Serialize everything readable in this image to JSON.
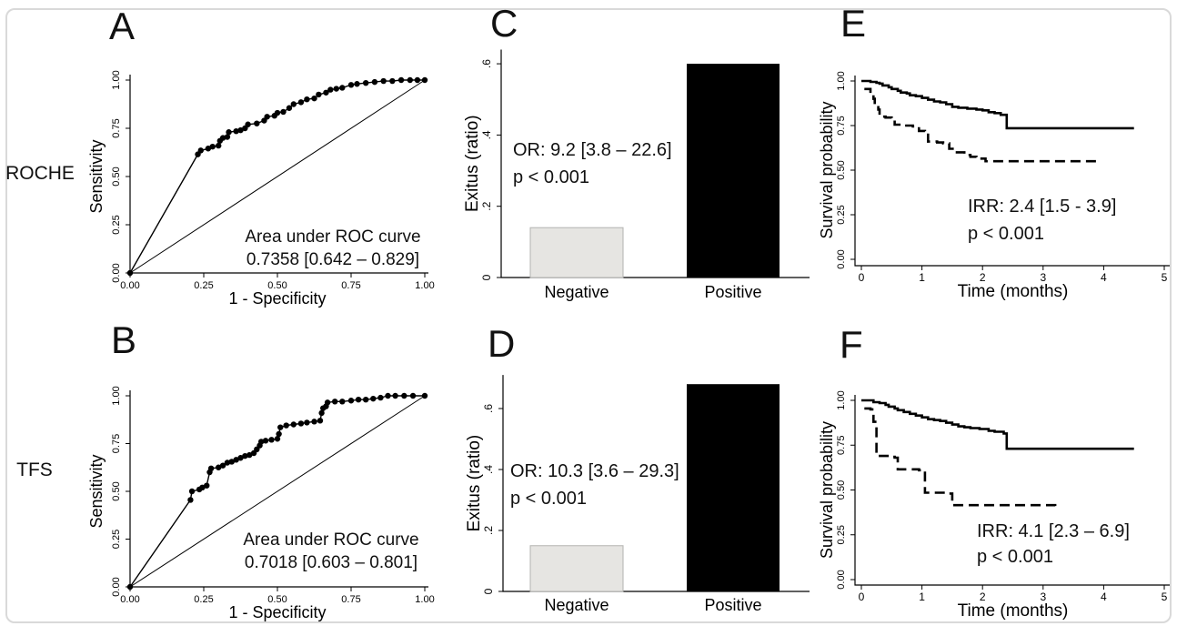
{
  "figure": {
    "row_labels": [
      "ROCHE",
      "TFS"
    ]
  },
  "chart_data": [
    {
      "id": "A",
      "panel_letter": "A",
      "row": "ROCHE",
      "type": "line",
      "subtype": "roc",
      "xlabel": "1 - Specificity",
      "ylabel": "Sensitivity",
      "xlim": [
        0,
        1
      ],
      "ylim": [
        0,
        1
      ],
      "xticks": [
        0,
        0.25,
        0.5,
        0.75,
        1
      ],
      "xtick_labels": [
        "0.00",
        "0.25",
        "0.50",
        "0.75",
        "1.00"
      ],
      "yticks": [
        0,
        0.25,
        0.5,
        0.75,
        1
      ],
      "ytick_labels": [
        "0.00",
        "0.25",
        "0.50",
        "0.75",
        "1.00"
      ],
      "diagonal_reference": true,
      "annotation_lines": [
        "Area under ROC curve",
        "0.7358 [0.642 – 0.829]"
      ],
      "points": [
        [
          0,
          0
        ],
        [
          0.23,
          0.615
        ],
        [
          0.24,
          0.635
        ],
        [
          0.265,
          0.645
        ],
        [
          0.28,
          0.655
        ],
        [
          0.3,
          0.66
        ],
        [
          0.305,
          0.685
        ],
        [
          0.315,
          0.7
        ],
        [
          0.33,
          0.705
        ],
        [
          0.335,
          0.73
        ],
        [
          0.36,
          0.735
        ],
        [
          0.375,
          0.74
        ],
        [
          0.39,
          0.75
        ],
        [
          0.4,
          0.77
        ],
        [
          0.43,
          0.775
        ],
        [
          0.455,
          0.79
        ],
        [
          0.465,
          0.81
        ],
        [
          0.49,
          0.815
        ],
        [
          0.5,
          0.83
        ],
        [
          0.52,
          0.835
        ],
        [
          0.54,
          0.855
        ],
        [
          0.555,
          0.875
        ],
        [
          0.58,
          0.885
        ],
        [
          0.6,
          0.9
        ],
        [
          0.625,
          0.905
        ],
        [
          0.64,
          0.925
        ],
        [
          0.665,
          0.935
        ],
        [
          0.68,
          0.95
        ],
        [
          0.7,
          0.955
        ],
        [
          0.72,
          0.96
        ],
        [
          0.75,
          0.975
        ],
        [
          0.77,
          0.98
        ],
        [
          0.8,
          0.985
        ],
        [
          0.83,
          0.99
        ],
        [
          0.86,
          0.995
        ],
        [
          0.89,
          0.995
        ],
        [
          0.92,
          1
        ],
        [
          0.95,
          1
        ],
        [
          0.975,
          1
        ],
        [
          1,
          1
        ]
      ]
    },
    {
      "id": "B",
      "panel_letter": "B",
      "row": "TFS",
      "type": "line",
      "subtype": "roc",
      "xlabel": "1 - Specificity",
      "ylabel": "Sensitivity",
      "xlim": [
        0,
        1
      ],
      "ylim": [
        0,
        1
      ],
      "xticks": [
        0,
        0.25,
        0.5,
        0.75,
        1
      ],
      "xtick_labels": [
        "0.00",
        "0.25",
        "0.50",
        "0.75",
        "1.00"
      ],
      "yticks": [
        0,
        0.25,
        0.5,
        0.75,
        1
      ],
      "ytick_labels": [
        "0.00",
        "0.25",
        "0.50",
        "0.75",
        "1.00"
      ],
      "diagonal_reference": true,
      "annotation_lines": [
        "Area under ROC curve",
        "0.7018 [0.603 – 0.801]"
      ],
      "points": [
        [
          0,
          0
        ],
        [
          0.205,
          0.455
        ],
        [
          0.21,
          0.5
        ],
        [
          0.235,
          0.51
        ],
        [
          0.245,
          0.52
        ],
        [
          0.26,
          0.53
        ],
        [
          0.27,
          0.6
        ],
        [
          0.275,
          0.62
        ],
        [
          0.3,
          0.625
        ],
        [
          0.315,
          0.635
        ],
        [
          0.33,
          0.65
        ],
        [
          0.345,
          0.655
        ],
        [
          0.36,
          0.665
        ],
        [
          0.375,
          0.675
        ],
        [
          0.39,
          0.685
        ],
        [
          0.405,
          0.69
        ],
        [
          0.42,
          0.7
        ],
        [
          0.43,
          0.72
        ],
        [
          0.44,
          0.74
        ],
        [
          0.445,
          0.76
        ],
        [
          0.46,
          0.765
        ],
        [
          0.48,
          0.77
        ],
        [
          0.5,
          0.775
        ],
        [
          0.505,
          0.8
        ],
        [
          0.51,
          0.835
        ],
        [
          0.53,
          0.845
        ],
        [
          0.555,
          0.85
        ],
        [
          0.58,
          0.855
        ],
        [
          0.6,
          0.86
        ],
        [
          0.625,
          0.865
        ],
        [
          0.645,
          0.87
        ],
        [
          0.65,
          0.91
        ],
        [
          0.655,
          0.935
        ],
        [
          0.665,
          0.945
        ],
        [
          0.67,
          0.965
        ],
        [
          0.695,
          0.97
        ],
        [
          0.72,
          0.97
        ],
        [
          0.75,
          0.975
        ],
        [
          0.775,
          0.98
        ],
        [
          0.8,
          0.98
        ],
        [
          0.825,
          0.985
        ],
        [
          0.85,
          0.99
        ],
        [
          0.875,
          1
        ],
        [
          0.9,
          1
        ],
        [
          0.93,
          1
        ],
        [
          0.96,
          1
        ],
        [
          1,
          1
        ]
      ]
    },
    {
      "id": "C",
      "panel_letter": "C",
      "row": "ROCHE",
      "type": "bar",
      "ylabel": "Exitus (ratio)",
      "categories": [
        "Negative",
        "Positive"
      ],
      "values": [
        0.14,
        0.6
      ],
      "bar_colors": [
        "#e6e5e2",
        "#000000"
      ],
      "yticks": [
        0,
        0.2,
        0.4,
        0.6
      ],
      "ytick_labels": [
        "0",
        ".2",
        ".4",
        ".6"
      ],
      "ylim": [
        0,
        0.64
      ],
      "annotation_lines": [
        "OR: 9.2 [3.8 – 22.6]",
        "p < 0.001"
      ]
    },
    {
      "id": "D",
      "panel_letter": "D",
      "row": "TFS",
      "type": "bar",
      "ylabel": "Exitus (ratio)",
      "categories": [
        "Negative",
        "Positive"
      ],
      "values": [
        0.15,
        0.68
      ],
      "bar_colors": [
        "#e6e5e2",
        "#000000"
      ],
      "yticks": [
        0,
        0.2,
        0.4,
        0.6
      ],
      "ytick_labels": [
        "0",
        ".2",
        ".4",
        ".6"
      ],
      "ylim": [
        0,
        0.71
      ],
      "annotation_lines": [
        "OR: 10.3 [3.6 – 29.3]",
        "p < 0.001"
      ]
    },
    {
      "id": "E",
      "panel_letter": "E",
      "row": "ROCHE",
      "type": "line",
      "subtype": "km",
      "xlabel": "Time (months)",
      "ylabel": "Survival probability",
      "xlim": [
        0,
        5
      ],
      "ylim": [
        0,
        1
      ],
      "xticks": [
        0,
        1,
        2,
        3,
        4,
        5
      ],
      "xtick_labels": [
        "0",
        "1",
        "2",
        "3",
        "4",
        "5"
      ],
      "yticks": [
        0,
        0.25,
        0.5,
        0.75,
        1
      ],
      "ytick_labels": [
        "0.00",
        "0.25",
        "0.50",
        "0.75",
        "1.00"
      ],
      "annotation_lines": [
        "IRR: 2.4 [1.5 - 3.9]",
        "p < 0.001"
      ],
      "series": [
        {
          "style": "solid",
          "points": [
            [
              0,
              1
            ],
            [
              0.1,
              1
            ],
            [
              0.15,
              0.995
            ],
            [
              0.25,
              0.99
            ],
            [
              0.3,
              0.985
            ],
            [
              0.35,
              0.975
            ],
            [
              0.45,
              0.965
            ],
            [
              0.5,
              0.955
            ],
            [
              0.6,
              0.945
            ],
            [
              0.65,
              0.935
            ],
            [
              0.75,
              0.93
            ],
            [
              0.8,
              0.92
            ],
            [
              0.9,
              0.915
            ],
            [
              1,
              0.905
            ],
            [
              1.1,
              0.895
            ],
            [
              1.2,
              0.885
            ],
            [
              1.3,
              0.88
            ],
            [
              1.4,
              0.87
            ],
            [
              1.5,
              0.855
            ],
            [
              1.6,
              0.85
            ],
            [
              1.75,
              0.845
            ],
            [
              1.9,
              0.84
            ],
            [
              2,
              0.835
            ],
            [
              2.1,
              0.825
            ],
            [
              2.2,
              0.82
            ],
            [
              2.3,
              0.81
            ],
            [
              2.4,
              0.735
            ],
            [
              4.5,
              0.735
            ]
          ]
        },
        {
          "style": "dashed",
          "points": [
            [
              0.05,
              0.955
            ],
            [
              0.15,
              0.93
            ],
            [
              0.2,
              0.9
            ],
            [
              0.22,
              0.865
            ],
            [
              0.28,
              0.84
            ],
            [
              0.3,
              0.8
            ],
            [
              0.4,
              0.795
            ],
            [
              0.5,
              0.79
            ],
            [
              0.55,
              0.755
            ],
            [
              0.7,
              0.75
            ],
            [
              0.85,
              0.745
            ],
            [
              0.95,
              0.72
            ],
            [
              1.05,
              0.715
            ],
            [
              1.1,
              0.66
            ],
            [
              1.25,
              0.655
            ],
            [
              1.35,
              0.65
            ],
            [
              1.45,
              0.62
            ],
            [
              1.55,
              0.6
            ],
            [
              1.7,
              0.585
            ],
            [
              1.8,
              0.575
            ],
            [
              1.9,
              0.565
            ],
            [
              2.05,
              0.55
            ],
            [
              3.95,
              0.55
            ]
          ]
        }
      ]
    },
    {
      "id": "F",
      "panel_letter": "F",
      "row": "TFS",
      "type": "line",
      "subtype": "km",
      "xlabel": "Time (months)",
      "ylabel": "Survival probability",
      "xlim": [
        0,
        5
      ],
      "ylim": [
        0,
        1
      ],
      "xticks": [
        0,
        1,
        2,
        3,
        4,
        5
      ],
      "xtick_labels": [
        "0",
        "1",
        "2",
        "3",
        "4",
        "5"
      ],
      "yticks": [
        0,
        0.25,
        0.5,
        0.75,
        1
      ],
      "ytick_labels": [
        "0.00",
        "0.25",
        "0.50",
        "0.75",
        "1.00"
      ],
      "annotation_lines": [
        "IRR: 4.1 [2.3 – 6.9]",
        "p < 0.001"
      ],
      "series": [
        {
          "style": "solid",
          "points": [
            [
              0,
              1
            ],
            [
              0.15,
              1
            ],
            [
              0.2,
              0.99
            ],
            [
              0.3,
              0.985
            ],
            [
              0.4,
              0.975
            ],
            [
              0.45,
              0.965
            ],
            [
              0.55,
              0.955
            ],
            [
              0.6,
              0.945
            ],
            [
              0.7,
              0.935
            ],
            [
              0.8,
              0.925
            ],
            [
              0.9,
              0.915
            ],
            [
              1,
              0.905
            ],
            [
              1.1,
              0.895
            ],
            [
              1.2,
              0.89
            ],
            [
              1.3,
              0.885
            ],
            [
              1.4,
              0.875
            ],
            [
              1.5,
              0.865
            ],
            [
              1.6,
              0.855
            ],
            [
              1.7,
              0.85
            ],
            [
              1.8,
              0.845
            ],
            [
              1.95,
              0.84
            ],
            [
              2.1,
              0.83
            ],
            [
              2.2,
              0.825
            ],
            [
              2.35,
              0.815
            ],
            [
              2.4,
              0.73
            ],
            [
              4.5,
              0.73
            ]
          ]
        },
        {
          "style": "dashed",
          "points": [
            [
              0.05,
              0.955
            ],
            [
              0.15,
              0.95
            ],
            [
              0.2,
              0.88
            ],
            [
              0.25,
              0.69
            ],
            [
              0.5,
              0.685
            ],
            [
              0.55,
              0.68
            ],
            [
              0.6,
              0.615
            ],
            [
              0.95,
              0.61
            ],
            [
              1.05,
              0.485
            ],
            [
              1.4,
              0.48
            ],
            [
              1.5,
              0.415
            ],
            [
              3.2,
              0.41
            ]
          ]
        }
      ]
    }
  ]
}
